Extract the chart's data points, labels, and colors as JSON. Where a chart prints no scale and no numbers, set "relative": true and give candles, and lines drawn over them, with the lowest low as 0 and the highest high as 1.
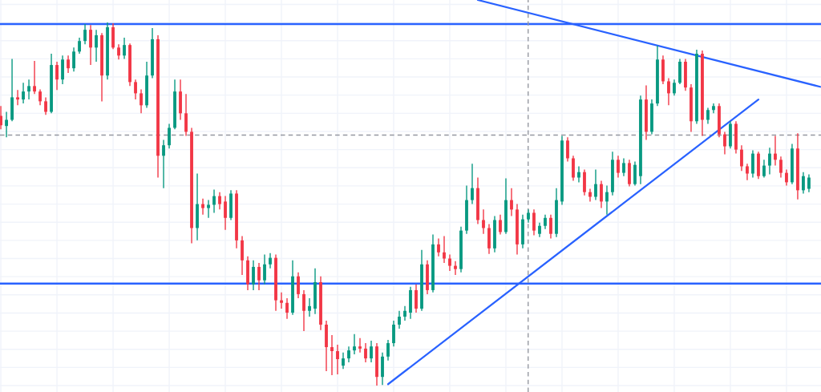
{
  "chart_data": {
    "type": "candlestick",
    "relative": true,
    "grid": true,
    "categories": [
      null,
      null,
      null,
      null,
      null,
      null,
      null,
      null,
      null,
      null,
      null,
      null,
      null,
      null,
      null,
      null,
      null,
      null,
      null,
      null,
      null,
      null,
      null,
      null,
      null,
      null,
      null,
      null,
      null,
      null,
      null,
      null,
      null,
      null,
      null,
      null,
      null,
      null,
      null,
      null,
      null,
      null,
      null,
      null,
      null,
      null,
      null,
      null,
      null,
      null,
      null,
      null,
      null,
      null,
      null,
      null,
      null,
      null,
      null,
      null,
      null,
      null,
      null,
      null,
      null,
      null,
      null,
      null,
      null,
      null,
      null,
      null,
      null,
      null,
      null,
      null,
      null,
      null,
      null,
      null,
      null,
      null,
      null,
      null,
      null,
      null,
      null,
      null,
      null,
      null,
      null,
      null,
      null,
      null,
      null,
      null,
      null,
      null,
      null,
      null,
      null,
      null,
      null,
      null,
      null,
      null,
      null,
      null,
      null,
      null,
      null,
      null,
      null,
      null,
      null,
      null,
      null,
      null,
      null,
      null,
      null,
      null,
      null,
      null,
      null,
      null,
      null,
      null,
      null,
      null,
      null,
      null,
      null,
      null,
      null,
      null,
      null,
      null,
      null,
      null,
      null,
      null,
      null,
      null,
      null,
      null,
      null
    ],
    "ohlc": [
      [
        0.743,
        0.77,
        0.706,
        0.717
      ],
      [
        0.715,
        0.754,
        0.684,
        0.732
      ],
      [
        0.732,
        0.9,
        0.728,
        0.794
      ],
      [
        0.794,
        0.814,
        0.772,
        0.788
      ],
      [
        0.788,
        0.834,
        0.777,
        0.81
      ],
      [
        0.81,
        0.843,
        0.788,
        0.825
      ],
      [
        0.825,
        0.894,
        0.803,
        0.81
      ],
      [
        0.81,
        0.816,
        0.772,
        0.783
      ],
      [
        0.783,
        0.794,
        0.746,
        0.754
      ],
      [
        0.754,
        0.914,
        0.75,
        0.883
      ],
      [
        0.883,
        0.892,
        0.814,
        0.843
      ],
      [
        0.843,
        0.909,
        0.83,
        0.898
      ],
      [
        0.898,
        0.909,
        0.861,
        0.874
      ],
      [
        0.874,
        0.931,
        0.865,
        0.92
      ],
      [
        0.92,
        0.958,
        0.914,
        0.949
      ],
      [
        0.949,
        0.996,
        0.94,
        0.98
      ],
      [
        0.98,
        0.993,
        0.883,
        0.931
      ],
      [
        0.931,
        0.98,
        0.892,
        0.965
      ],
      [
        0.965,
        0.971,
        0.783,
        0.854
      ],
      [
        0.854,
        1.0,
        0.843,
        0.987
      ],
      [
        0.987,
        0.998,
        0.927,
        0.931
      ],
      [
        0.931,
        0.94,
        0.898,
        0.909
      ],
      [
        0.909,
        0.958,
        0.9,
        0.938
      ],
      [
        0.938,
        0.942,
        0.825,
        0.836
      ],
      [
        0.836,
        0.843,
        0.788,
        0.805
      ],
      [
        0.805,
        0.816,
        0.75,
        0.772
      ],
      [
        0.772,
        0.892,
        0.765,
        0.854
      ],
      [
        0.854,
        0.985,
        0.847,
        0.954
      ],
      [
        0.954,
        0.965,
        0.573,
        0.633
      ],
      [
        0.633,
        0.677,
        0.544,
        0.662
      ],
      [
        0.662,
        0.721,
        0.653,
        0.71
      ],
      [
        0.71,
        0.843,
        0.706,
        0.81
      ],
      [
        0.81,
        0.843,
        0.732,
        0.75
      ],
      [
        0.75,
        0.803,
        0.688,
        0.699
      ],
      [
        0.699,
        0.71,
        0.392,
        0.434
      ],
      [
        0.434,
        0.584,
        0.4,
        0.5
      ],
      [
        0.5,
        0.515,
        0.471,
        0.489
      ],
      [
        0.489,
        0.511,
        0.462,
        0.498
      ],
      [
        0.498,
        0.54,
        0.476,
        0.522
      ],
      [
        0.522,
        0.533,
        0.485,
        0.5
      ],
      [
        0.507,
        0.522,
        0.429,
        0.462
      ],
      [
        0.462,
        0.538,
        0.456,
        0.529
      ],
      [
        0.529,
        0.538,
        0.378,
        0.4
      ],
      [
        0.4,
        0.412,
        0.305,
        0.345
      ],
      [
        0.345,
        0.356,
        0.263,
        0.279
      ],
      [
        0.279,
        0.345,
        0.263,
        0.327
      ],
      [
        0.327,
        0.338,
        0.263,
        0.29
      ],
      [
        0.29,
        0.361,
        0.279,
        0.334
      ],
      [
        0.334,
        0.365,
        0.323,
        0.352
      ],
      [
        0.352,
        0.361,
        0.206,
        0.235
      ],
      [
        0.235,
        0.257,
        0.212,
        0.228
      ],
      [
        0.228,
        0.241,
        0.184,
        0.201
      ],
      [
        0.201,
        0.345,
        0.195,
        0.301
      ],
      [
        0.301,
        0.312,
        0.241,
        0.252
      ],
      [
        0.252,
        0.263,
        0.15,
        0.206
      ],
      [
        0.206,
        0.241,
        0.19,
        0.219
      ],
      [
        0.212,
        0.323,
        0.197,
        0.285
      ],
      [
        0.285,
        0.301,
        0.153,
        0.168
      ],
      [
        0.168,
        0.179,
        0.04,
        0.106
      ],
      [
        0.106,
        0.139,
        0.029,
        0.095
      ],
      [
        0.095,
        0.113,
        0.031,
        0.073
      ],
      [
        0.055,
        0.091,
        0.046,
        0.075
      ],
      [
        0.075,
        0.108,
        0.064,
        0.097
      ],
      [
        0.097,
        0.142,
        0.086,
        0.108
      ],
      [
        0.108,
        0.131,
        0.091,
        0.102
      ],
      [
        0.102,
        0.117,
        0.064,
        0.075
      ],
      [
        0.075,
        0.124,
        0.064,
        0.108
      ],
      [
        0.108,
        0.117,
        0.0,
        0.024
      ],
      [
        0.024,
        0.091,
        0.002,
        0.08
      ],
      [
        0.08,
        0.126,
        0.069,
        0.117
      ],
      [
        0.117,
        0.179,
        0.108,
        0.168
      ],
      [
        0.168,
        0.206,
        0.157,
        0.19
      ],
      [
        0.19,
        0.219,
        0.179,
        0.206
      ],
      [
        0.201,
        0.272,
        0.184,
        0.263
      ],
      [
        0.263,
        0.279,
        0.201,
        0.212
      ],
      [
        0.212,
        0.374,
        0.206,
        0.334
      ],
      [
        0.334,
        0.345,
        0.252,
        0.263
      ],
      [
        0.263,
        0.416,
        0.257,
        0.389
      ],
      [
        0.389,
        0.405,
        0.356,
        0.367
      ],
      [
        0.367,
        0.412,
        0.338,
        0.35
      ],
      [
        0.35,
        0.361,
        0.316,
        0.33
      ],
      [
        0.33,
        0.343,
        0.305,
        0.321
      ],
      [
        0.321,
        0.438,
        0.312,
        0.427
      ],
      [
        0.427,
        0.551,
        0.418,
        0.511
      ],
      [
        0.511,
        0.611,
        0.5,
        0.544
      ],
      [
        0.544,
        0.573,
        0.445,
        0.456
      ],
      [
        0.456,
        0.485,
        0.418,
        0.434
      ],
      [
        0.434,
        0.445,
        0.363,
        0.378
      ],
      [
        0.378,
        0.467,
        0.367,
        0.456
      ],
      [
        0.456,
        0.471,
        0.416,
        0.423
      ],
      [
        0.423,
        0.571,
        0.418,
        0.511
      ],
      [
        0.511,
        0.544,
        0.467,
        0.485
      ],
      [
        0.485,
        0.5,
        0.361,
        0.389
      ],
      [
        0.389,
        0.471,
        0.378,
        0.458
      ],
      [
        0.458,
        0.485,
        0.449,
        0.476
      ],
      [
        0.476,
        0.485,
        0.414,
        0.427
      ],
      [
        0.418,
        0.449,
        0.409,
        0.44
      ],
      [
        0.44,
        0.471,
        0.431,
        0.462
      ],
      [
        0.462,
        0.471,
        0.405,
        0.418
      ],
      [
        0.418,
        0.544,
        0.409,
        0.511
      ],
      [
        0.507,
        0.688,
        0.498,
        0.675
      ],
      [
        0.675,
        0.684,
        0.617,
        0.626
      ],
      [
        0.626,
        0.633,
        0.564,
        0.573
      ],
      [
        0.573,
        0.604,
        0.56,
        0.588
      ],
      [
        0.588,
        0.595,
        0.524,
        0.533
      ],
      [
        0.533,
        0.542,
        0.507,
        0.52
      ],
      [
        0.52,
        0.595,
        0.511,
        0.555
      ],
      [
        0.555,
        0.564,
        0.489,
        0.507
      ],
      [
        0.507,
        0.551,
        0.471,
        0.533
      ],
      [
        0.533,
        0.644,
        0.524,
        0.622
      ],
      [
        0.622,
        0.633,
        0.573,
        0.586
      ],
      [
        0.586,
        0.626,
        0.577,
        0.613
      ],
      [
        0.613,
        0.622,
        0.549,
        0.555
      ],
      [
        0.555,
        0.617,
        0.551,
        0.608
      ],
      [
        0.577,
        0.799,
        0.555,
        0.788
      ],
      [
        0.788,
        0.827,
        0.677,
        0.699
      ],
      [
        0.699,
        0.788,
        0.692,
        0.777
      ],
      [
        0.777,
        0.936,
        0.77,
        0.898
      ],
      [
        0.898,
        0.909,
        0.83,
        0.838
      ],
      [
        0.838,
        0.847,
        0.772,
        0.805
      ],
      [
        0.805,
        0.843,
        0.799,
        0.834
      ],
      [
        0.834,
        0.9,
        0.83,
        0.892
      ],
      [
        0.892,
        0.9,
        0.812,
        0.821
      ],
      [
        0.821,
        0.83,
        0.699,
        0.728
      ],
      [
        0.728,
        0.925,
        0.721,
        0.914
      ],
      [
        0.914,
        0.923,
        0.688,
        0.732
      ],
      [
        0.732,
        0.765,
        0.721,
        0.759
      ],
      [
        0.759,
        0.777,
        0.75,
        0.77
      ],
      [
        0.77,
        0.777,
        0.684,
        0.692
      ],
      [
        0.692,
        0.699,
        0.637,
        0.659
      ],
      [
        0.659,
        0.728,
        0.653,
        0.721
      ],
      [
        0.721,
        0.728,
        0.639,
        0.65
      ],
      [
        0.65,
        0.662,
        0.591,
        0.604
      ],
      [
        0.604,
        0.611,
        0.566,
        0.584
      ],
      [
        0.584,
        0.648,
        0.573,
        0.639
      ],
      [
        0.639,
        0.644,
        0.569,
        0.577
      ],
      [
        0.577,
        0.622,
        0.573,
        0.606
      ],
      [
        0.606,
        0.655,
        0.582,
        0.639
      ],
      [
        0.639,
        0.688,
        0.606,
        0.622
      ],
      [
        0.622,
        0.631,
        0.573,
        0.586
      ],
      [
        0.586,
        0.595,
        0.551,
        0.56
      ],
      [
        0.56,
        0.666,
        0.555,
        0.653
      ],
      [
        0.653,
        0.695,
        0.513,
        0.538
      ],
      [
        0.538,
        0.588,
        0.529,
        0.577
      ],
      [
        0.542,
        0.582,
        0.533,
        0.573
      ],
      null,
      null
    ],
    "colors": [
      "#f23645",
      "#089981",
      "#089981",
      "#f23645",
      "#089981",
      "#089981",
      "#f23645",
      "#f23645",
      "#f23645",
      "#089981",
      "#f23645",
      "#089981",
      "#f23645",
      "#089981",
      "#089981",
      "#089981",
      "#f23645",
      "#089981",
      "#f23645",
      "#089981",
      "#f23645",
      "#f23645",
      "#089981",
      "#f23645",
      "#f23645",
      "#f23645",
      "#089981",
      "#089981",
      "#f23645",
      "#089981",
      "#089981",
      "#089981",
      "#f23645",
      "#f23645",
      "#f23645",
      "#089981",
      "#f23645",
      "#089981",
      "#089981",
      "#f23645",
      "#f23645",
      "#089981",
      "#f23645",
      "#f23645",
      "#f23645",
      "#089981",
      "#f23645",
      "#089981",
      "#089981",
      "#f23645",
      "#f23645",
      "#f23645",
      "#089981",
      "#f23645",
      "#f23645",
      "#089981",
      "#089981",
      "#f23645",
      "#f23645",
      "#f23645",
      "#f23645",
      "#089981",
      "#089981",
      "#089981",
      "#f23645",
      "#f23645",
      "#089981",
      "#f23645",
      "#089981",
      "#089981",
      "#089981",
      "#089981",
      "#089981",
      "#089981",
      "#f23645",
      "#089981",
      "#f23645",
      "#089981",
      "#f23645",
      "#f23645",
      "#f23645",
      "#f23645",
      "#089981",
      "#089981",
      "#089981",
      "#f23645",
      "#f23645",
      "#f23645",
      "#089981",
      "#f23645",
      "#089981",
      "#f23645",
      "#f23645",
      "#089981",
      "#089981",
      "#f23645",
      "#089981",
      "#089981",
      "#f23645",
      "#089981",
      "#089981",
      "#f23645",
      "#f23645",
      "#089981",
      "#f23645",
      "#f23645",
      "#089981",
      "#f23645",
      "#089981",
      "#089981",
      "#f23645",
      "#089981",
      "#f23645",
      "#089981",
      "#089981",
      "#f23645",
      "#089981",
      "#089981",
      "#f23645",
      "#f23645",
      "#089981",
      "#089981",
      "#f23645",
      "#f23645",
      "#089981",
      "#f23645",
      "#089981",
      "#089981",
      "#f23645",
      "#f23645",
      "#089981",
      "#f23645",
      "#f23645",
      "#f23645",
      "#089981",
      "#f23645",
      "#089981",
      "#089981",
      "#f23645",
      "#f23645",
      "#f23645",
      "#089981",
      "#f23645",
      "#089981",
      "#089981",
      null,
      null
    ],
    "series": [
      {
        "type": "line",
        "color": "#2962ff",
        "values": [
          null,
          null,
          null,
          null,
          null,
          null,
          null,
          null,
          null,
          null,
          null,
          null,
          null,
          null,
          null,
          null,
          null,
          null,
          null,
          null,
          null,
          null,
          null,
          null,
          null,
          null,
          null,
          null,
          null,
          null,
          null,
          null,
          null,
          null,
          null,
          null,
          null,
          null,
          null,
          null,
          null,
          null,
          null,
          null,
          null,
          null,
          null,
          null,
          null,
          null,
          null,
          null,
          null,
          null,
          null,
          null,
          null,
          null,
          null,
          null,
          null,
          null,
          null,
          null,
          null,
          null,
          null,
          null,
          null,
          null,
          null,
          null,
          null,
          null,
          null,
          null,
          null,
          null,
          null,
          null,
          null,
          null,
          null,
          null,
          null,
          1.062,
          null,
          null,
          null,
          null,
          null,
          null,
          null,
          null,
          null,
          null,
          null,
          null,
          null,
          null,
          null,
          null,
          null,
          null,
          null,
          null,
          null,
          null,
          null,
          null,
          null,
          null,
          null,
          null,
          null,
          null,
          null,
          null,
          null,
          null,
          null,
          null,
          null,
          null,
          null,
          null,
          null,
          null,
          null,
          null,
          null,
          null,
          null,
          null,
          null,
          null,
          null,
          null,
          null,
          null,
          null,
          null,
          null,
          null,
          null,
          null,
          0.823
        ]
      },
      {
        "type": "line",
        "color": "#2962ff",
        "values": [
          null,
          null,
          null,
          null,
          null,
          null,
          null,
          null,
          null,
          null,
          null,
          null,
          null,
          null,
          null,
          null,
          null,
          null,
          null,
          null,
          null,
          null,
          null,
          null,
          null,
          null,
          null,
          null,
          null,
          null,
          null,
          null,
          null,
          null,
          null,
          null,
          null,
          null,
          null,
          null,
          null,
          null,
          null,
          null,
          null,
          null,
          null,
          null,
          null,
          null,
          null,
          null,
          null,
          null,
          null,
          null,
          null,
          null,
          null,
          null,
          null,
          null,
          null,
          null,
          null,
          null,
          null,
          null,
          null,
          0.004,
          null,
          null,
          null,
          null,
          null,
          null,
          null,
          null,
          null,
          null,
          null,
          null,
          null,
          null,
          null,
          null,
          null,
          null,
          null,
          null,
          null,
          null,
          null,
          null,
          null,
          null,
          null,
          null,
          null,
          null,
          null,
          null,
          null,
          null,
          null,
          null,
          null,
          null,
          null,
          null,
          null,
          null,
          null,
          null,
          null,
          null,
          null,
          null,
          null,
          null,
          null,
          null,
          null,
          null,
          null,
          null,
          null,
          null,
          null,
          null,
          null,
          null,
          null,
          null,
          null,
          0.788,
          null,
          null,
          null,
          null,
          null,
          null,
          null,
          null,
          null,
          null,
          null
        ]
      }
    ],
    "ref_lines": [
      {
        "axis": "y",
        "value": 0.996,
        "color": "#2962ff",
        "line_style": "solid"
      },
      {
        "axis": "y",
        "value": 0.281,
        "color": "#2962ff",
        "line_style": "solid"
      },
      {
        "axis": "y",
        "value": 0.69,
        "color": "#9598a1",
        "line_style": "dashed"
      }
    ]
  }
}
